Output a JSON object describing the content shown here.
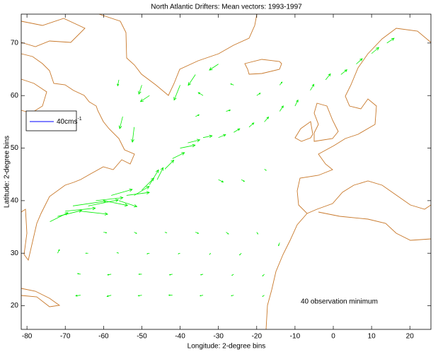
{
  "chart_data": {
    "type": "quiver",
    "title": "North Atlantic Drifters: Mean vectors: 1993-1997",
    "x_label": "Longitude: 2-degree bins",
    "y_label": "Latitude: 2-degree bins",
    "annotation": "40 observation minimum",
    "legend_label": "40cms",
    "legend_exponent": "-1",
    "legend_color": "#0000ff",
    "color": "#00ee00",
    "xlim": [
      -81.5,
      25.5
    ],
    "ylim": [
      15.5,
      75.5
    ],
    "xticks": [
      -80,
      -70,
      -60,
      -50,
      -40,
      -30,
      -20,
      -10,
      0,
      10,
      20
    ],
    "yticks": [
      20,
      30,
      40,
      50,
      60,
      70
    ],
    "vectors": [
      {
        "x": -74,
        "y": 36,
        "u": 30,
        "v": 15
      },
      {
        "x": -72,
        "y": 37,
        "u": 40,
        "v": 10
      },
      {
        "x": -70,
        "y": 38,
        "u": 50,
        "v": 5
      },
      {
        "x": -68,
        "y": 39,
        "u": 55,
        "v": 8
      },
      {
        "x": -66,
        "y": 38,
        "u": 45,
        "v": -5
      },
      {
        "x": -64,
        "y": 39,
        "u": 50,
        "v": 10
      },
      {
        "x": -62,
        "y": 40,
        "u": 45,
        "v": 5
      },
      {
        "x": -60,
        "y": 40,
        "u": 40,
        "v": -8
      },
      {
        "x": -58,
        "y": 41,
        "u": 35,
        "v": 10
      },
      {
        "x": -56,
        "y": 40,
        "u": 30,
        "v": -10
      },
      {
        "x": -54,
        "y": 41,
        "u": 38,
        "v": 5
      },
      {
        "x": -52,
        "y": 41,
        "u": 25,
        "v": 15
      },
      {
        "x": -50,
        "y": 42,
        "u": 20,
        "v": 20
      },
      {
        "x": -48,
        "y": 43,
        "u": 15,
        "v": 25
      },
      {
        "x": -46,
        "y": 44,
        "u": 10,
        "v": 20
      },
      {
        "x": -44,
        "y": 46,
        "u": 15,
        "v": 15
      },
      {
        "x": -42,
        "y": 48,
        "u": 20,
        "v": 10
      },
      {
        "x": -40,
        "y": 50,
        "u": 25,
        "v": 5
      },
      {
        "x": -38,
        "y": 51,
        "u": 20,
        "v": 5
      },
      {
        "x": -34,
        "y": 52,
        "u": 15,
        "v": 3
      },
      {
        "x": -30,
        "y": 52,
        "u": 12,
        "v": 5
      },
      {
        "x": -26,
        "y": 53,
        "u": 10,
        "v": 6
      },
      {
        "x": -22,
        "y": 54,
        "u": 8,
        "v": 7
      },
      {
        "x": -18,
        "y": 55,
        "u": 7,
        "v": 8
      },
      {
        "x": -14,
        "y": 57,
        "u": 6,
        "v": 9
      },
      {
        "x": -10,
        "y": 58,
        "u": 5,
        "v": 10
      },
      {
        "x": -6,
        "y": 61,
        "u": 6,
        "v": 10
      },
      {
        "x": -2,
        "y": 63,
        "u": 8,
        "v": 10
      },
      {
        "x": 2,
        "y": 64,
        "u": 10,
        "v": 8
      },
      {
        "x": 6,
        "y": 66,
        "u": 10,
        "v": 9
      },
      {
        "x": 10,
        "y": 68,
        "u": 12,
        "v": 10
      },
      {
        "x": 14,
        "y": 70,
        "u": 12,
        "v": 8
      },
      {
        "x": -55,
        "y": 56,
        "u": -5,
        "v": -20
      },
      {
        "x": -52,
        "y": 54,
        "u": -3,
        "v": -25
      },
      {
        "x": -48,
        "y": 60,
        "u": -15,
        "v": -10
      },
      {
        "x": -50,
        "y": 62,
        "u": -5,
        "v": -15
      },
      {
        "x": -40,
        "y": 62,
        "u": -10,
        "v": -25
      },
      {
        "x": -36,
        "y": 64,
        "u": -12,
        "v": -18
      },
      {
        "x": -30,
        "y": 66,
        "u": -15,
        "v": -10
      },
      {
        "x": -26,
        "y": 62,
        "u": -5,
        "v": 2
      },
      {
        "x": -34,
        "y": 60,
        "u": -8,
        "v": 5
      },
      {
        "x": -56,
        "y": 63,
        "u": -2,
        "v": -10
      },
      {
        "x": -66,
        "y": 22,
        "u": -8,
        "v": -1
      },
      {
        "x": -58,
        "y": 22,
        "u": -7,
        "v": -2
      },
      {
        "x": -50,
        "y": 22,
        "u": -6,
        "v": -1
      },
      {
        "x": -42,
        "y": 22,
        "u": -6,
        "v": 0
      },
      {
        "x": -34,
        "y": 22,
        "u": -5,
        "v": -1
      },
      {
        "x": -26,
        "y": 22,
        "u": -4,
        "v": -1
      },
      {
        "x": -18,
        "y": 22,
        "u": -3,
        "v": -2
      },
      {
        "x": -66,
        "y": 26,
        "u": -5,
        "v": 1
      },
      {
        "x": -58,
        "y": 26,
        "u": -6,
        "v": -1
      },
      {
        "x": -50,
        "y": 26,
        "u": -5,
        "v": 0
      },
      {
        "x": -42,
        "y": 26,
        "u": -5,
        "v": -1
      },
      {
        "x": -34,
        "y": 26,
        "u": -4,
        "v": -1
      },
      {
        "x": -26,
        "y": 26,
        "u": -3,
        "v": -2
      },
      {
        "x": -18,
        "y": 26,
        "u": -3,
        "v": -3
      },
      {
        "x": -72,
        "y": 30,
        "u": 3,
        "v": 6
      },
      {
        "x": -64,
        "y": 30,
        "u": -4,
        "v": 0
      },
      {
        "x": -56,
        "y": 30,
        "u": -3,
        "v": 1
      },
      {
        "x": -48,
        "y": 30,
        "u": -4,
        "v": -1
      },
      {
        "x": -40,
        "y": 30,
        "u": -3,
        "v": -1
      },
      {
        "x": -32,
        "y": 30,
        "u": -2,
        "v": -2
      },
      {
        "x": -24,
        "y": 30,
        "u": -3,
        "v": -3
      },
      {
        "x": -60,
        "y": 34,
        "u": 5,
        "v": -1
      },
      {
        "x": -52,
        "y": 34,
        "u": 4,
        "v": -2
      },
      {
        "x": -44,
        "y": 34,
        "u": 3,
        "v": -1
      },
      {
        "x": -36,
        "y": 34,
        "u": 5,
        "v": -2
      },
      {
        "x": -28,
        "y": 34,
        "u": 4,
        "v": -3
      },
      {
        "x": -20,
        "y": 34,
        "u": 2,
        "v": -3
      },
      {
        "x": -14,
        "y": 32,
        "u": -2,
        "v": -5
      },
      {
        "x": -30,
        "y": 44,
        "u": 8,
        "v": -4
      },
      {
        "x": -24,
        "y": 44,
        "u": 5,
        "v": -3
      },
      {
        "x": -18,
        "y": 46,
        "u": 3,
        "v": -2
      },
      {
        "x": -36,
        "y": 56,
        "u": 6,
        "v": 3
      },
      {
        "x": -28,
        "y": 57,
        "u": 7,
        "v": 2
      },
      {
        "x": -20,
        "y": 60,
        "u": 6,
        "v": 4
      },
      {
        "x": -14,
        "y": 62,
        "u": 4,
        "v": 5
      }
    ]
  }
}
